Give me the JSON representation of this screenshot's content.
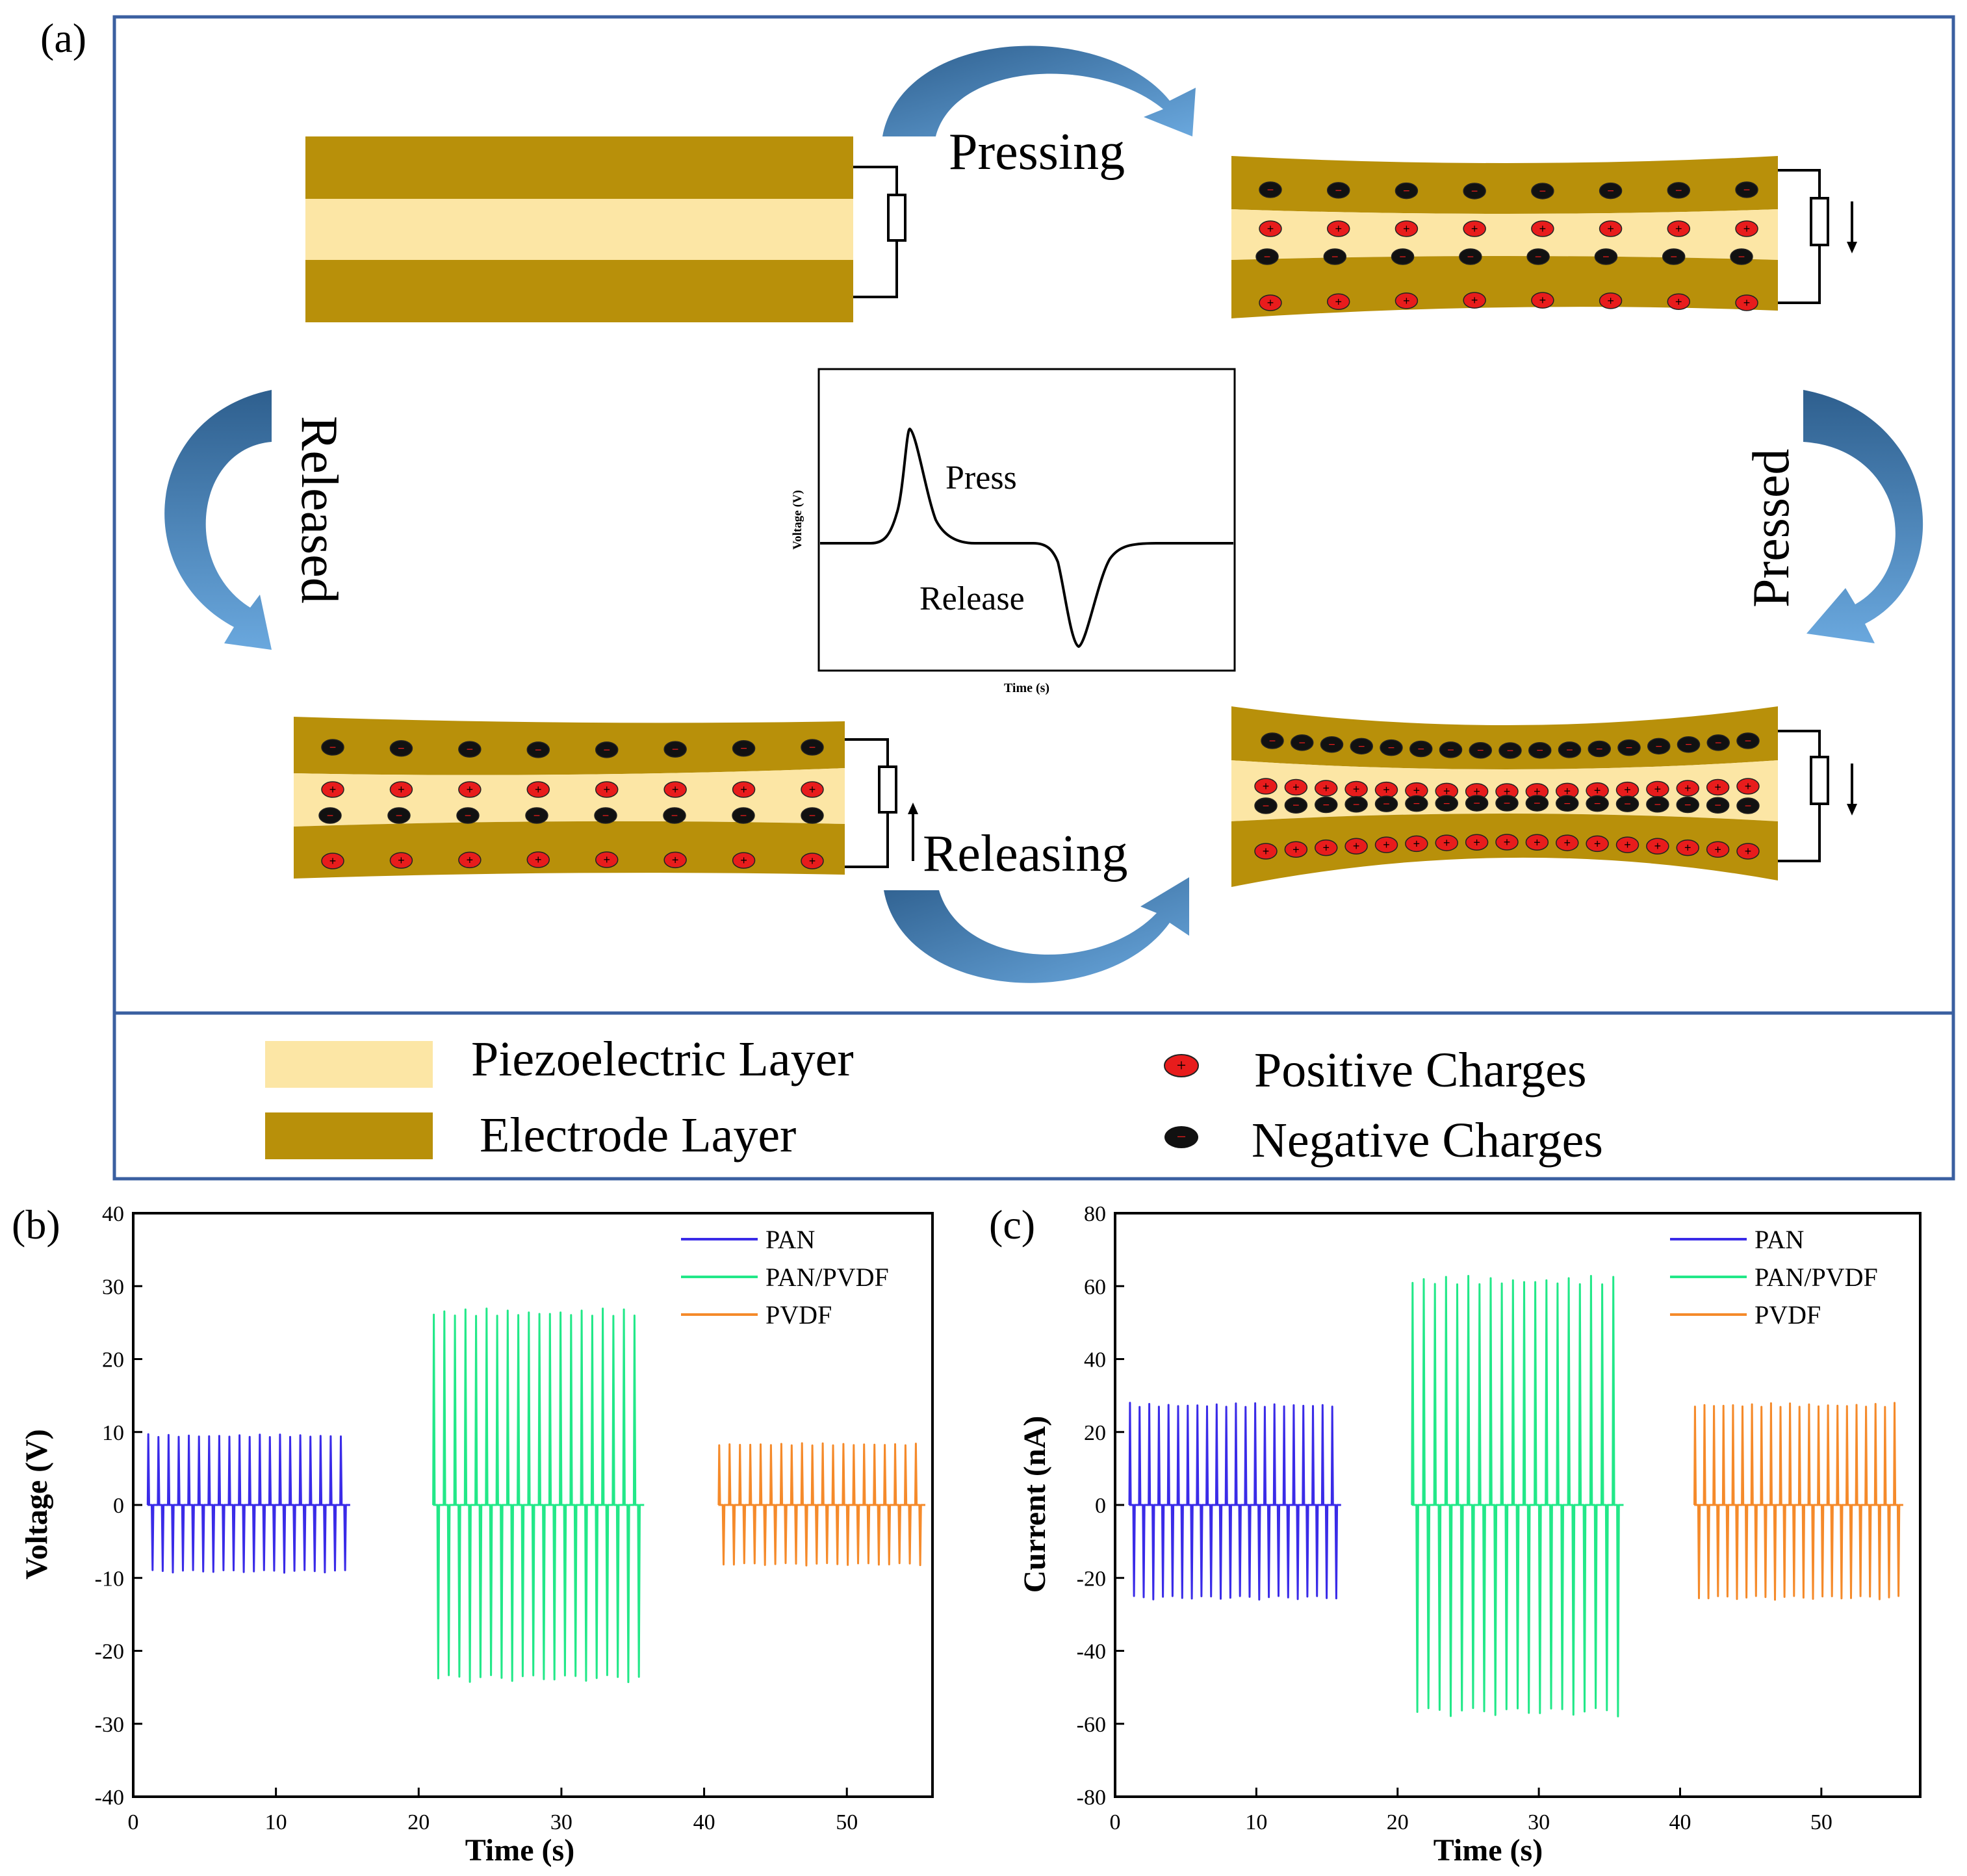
{
  "colors": {
    "piezo": "#FCE6A5",
    "electrode": "#B8900A",
    "positive": "#E81C1C",
    "negative": "#111111",
    "border": "#3A5FA0",
    "arrow_light": "#5B9BD5",
    "arrow_dark": "#2E5F8E",
    "pan": "#3A2BE8",
    "pan_pvdf": "#22E888",
    "pvdf": "#F58A2A"
  },
  "panel_a": {
    "label": "(a)",
    "states": {
      "pressing": "Pressing",
      "pressed": "Pressed",
      "releasing": "Releasing",
      "released": "Released"
    },
    "inset": {
      "ylabel": "Voltage (V)",
      "xlabel": "Time (s)",
      "press_label": "Press",
      "release_label": "Release"
    },
    "legend": {
      "piezo_label": "Piezoelectric Layer",
      "electrode_label": "Electrode Layer",
      "positive_label": "Positive Charges",
      "negative_label": "Negative Charges",
      "positive_symbol": "+",
      "negative_symbol": "−"
    }
  },
  "chart_data": [
    {
      "panel": "(b)",
      "type": "line",
      "xlabel": "Time (s)",
      "ylabel": "Voltage (V)",
      "xlim": [
        0,
        56
      ],
      "ylim": [
        -40,
        40
      ],
      "xticks": [
        0,
        10,
        20,
        30,
        40,
        50
      ],
      "yticks": [
        -40,
        -30,
        -20,
        -10,
        0,
        10,
        20,
        30,
        40
      ],
      "legend_position": "top-right",
      "series": [
        {
          "name": "PAN",
          "color": "#3A2BE8",
          "t_start": 1.0,
          "t_end": 15.2,
          "cycles": 20,
          "peak_max": 9.7,
          "peak_min": -9.3
        },
        {
          "name": "PAN/PVDF",
          "color": "#22E888",
          "t_start": 21.0,
          "t_end": 35.8,
          "cycles": 20,
          "peak_max": 27.0,
          "peak_min": -24.3
        },
        {
          "name": "PVDF",
          "color": "#F58A2A",
          "t_start": 41.0,
          "t_end": 55.5,
          "cycles": 20,
          "peak_max": 8.5,
          "peak_min": -8.3
        }
      ]
    },
    {
      "panel": "(c)",
      "type": "line",
      "xlabel": "Time (s)",
      "ylabel": "Current (nA)",
      "xlim": [
        0,
        57
      ],
      "ylim": [
        -80,
        80
      ],
      "xticks": [
        0,
        10,
        20,
        30,
        40,
        50
      ],
      "yticks": [
        -80,
        -60,
        -40,
        -20,
        0,
        20,
        40,
        60,
        80
      ],
      "legend_position": "top-right",
      "series": [
        {
          "name": "PAN",
          "color": "#3A2BE8",
          "t_start": 1.0,
          "t_end": 16.0,
          "cycles": 22,
          "peak_max": 28,
          "peak_min": -26
        },
        {
          "name": "PAN/PVDF",
          "color": "#22E888",
          "t_start": 21.0,
          "t_end": 36.0,
          "cycles": 19,
          "peak_max": 63,
          "peak_min": -58
        },
        {
          "name": "PVDF",
          "color": "#F58A2A",
          "t_start": 41.0,
          "t_end": 55.8,
          "cycles": 22,
          "peak_max": 28,
          "peak_min": -26
        }
      ]
    }
  ]
}
